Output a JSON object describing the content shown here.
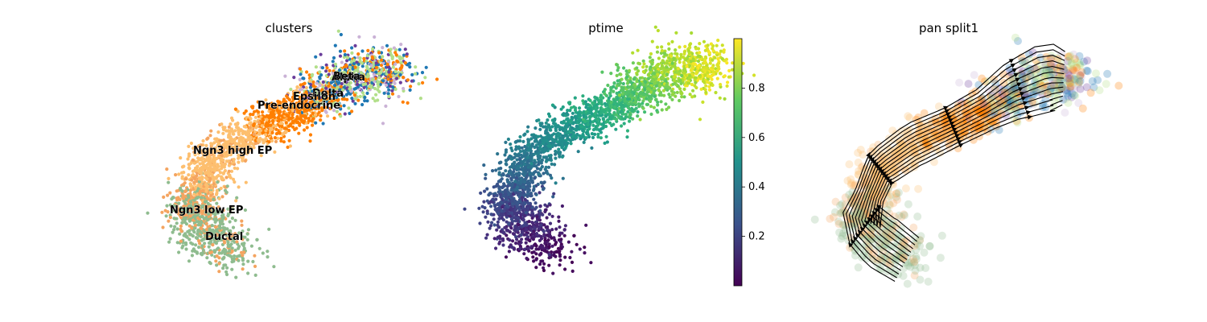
{
  "chart_data": [
    {
      "type": "scatter",
      "title": "clusters",
      "xlabel": "",
      "ylabel": "",
      "legend": "on data",
      "categories": [
        "Ductal",
        "Ngn3 low EP",
        "Ngn3 high EP",
        "Pre-endocrine",
        "Beta",
        "Alpha",
        "Delta",
        "Epsilon"
      ],
      "colors": {
        "Ductal": "#8fbc8f",
        "Ngn3 low EP": "#f4a460",
        "Ngn3 high EP": "#fdbf6f",
        "Pre-endocrine": "#ff7f00",
        "Beta": "#b2df8a",
        "Alpha": "#1f78b4",
        "Delta": "#6a3d9a",
        "Epsilon": "#cab2d6"
      },
      "labels": [
        "Ductal",
        "Ngn3 low EP",
        "Ngn3 high EP",
        "Pre-endocrine",
        "Epsilon",
        "Delta",
        "Beta",
        "Alpha"
      ]
    },
    {
      "type": "scatter",
      "title": "ptime",
      "xlabel": "",
      "ylabel": "",
      "colormap": "viridis",
      "colorbar": {
        "range": [
          0.0,
          1.0
        ],
        "ticks": [
          "0.2",
          "0.4",
          "0.6",
          "0.8"
        ]
      }
    },
    {
      "type": "streamline",
      "title": "pan split1",
      "xlabel": "",
      "ylabel": "",
      "stream_color": "#000000"
    }
  ]
}
